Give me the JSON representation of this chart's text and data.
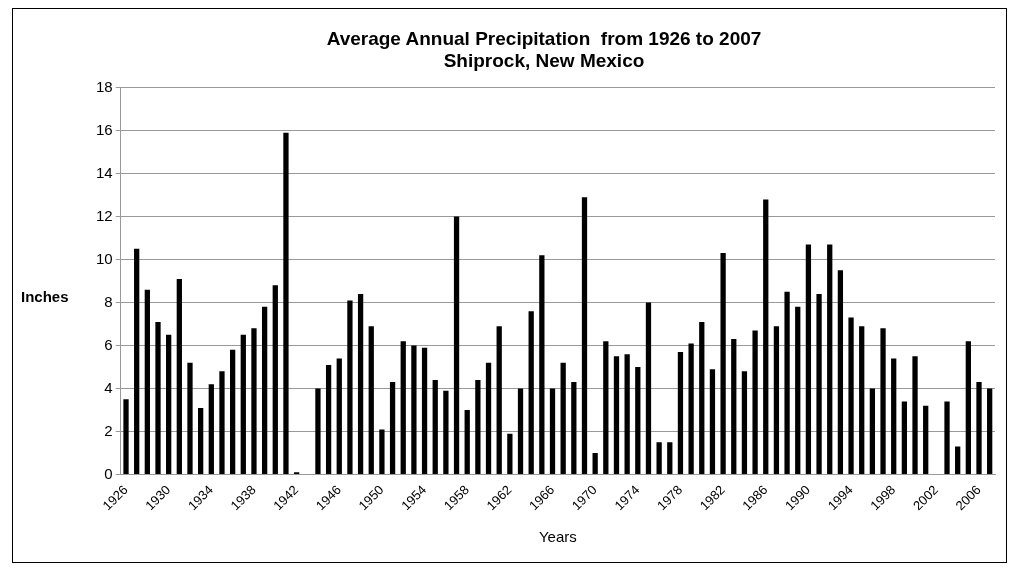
{
  "chart_data": {
    "type": "bar",
    "title": [
      "Average Annual Precipitation  from 1926 to 2007",
      "Shiprock, New Mexico"
    ],
    "xlabel": "Years",
    "ylabel": "Inches",
    "categories": [
      "1926",
      null,
      null,
      null,
      "1930",
      null,
      null,
      null,
      "1934",
      null,
      null,
      null,
      "1938",
      null,
      null,
      null,
      "1942",
      null,
      null,
      null,
      "1946",
      null,
      null,
      null,
      "1950",
      null,
      null,
      null,
      "1954",
      null,
      null,
      null,
      "1958",
      null,
      null,
      null,
      "1962",
      null,
      null,
      null,
      "1966",
      null,
      null,
      null,
      "1970",
      null,
      null,
      null,
      "1974",
      null,
      null,
      null,
      "1978",
      null,
      null,
      null,
      "1982",
      null,
      null,
      null,
      "1986",
      null,
      null,
      null,
      "1990",
      null,
      null,
      null,
      "1994",
      null,
      null,
      null,
      "1998",
      null,
      null,
      null,
      "2002",
      null,
      null,
      null,
      "2006",
      null
    ],
    "values": [
      3.5,
      10.5,
      8.6,
      7.1,
      6.5,
      9.1,
      5.2,
      3.1,
      4.2,
      4.8,
      5.8,
      6.5,
      6.8,
      7.8,
      8.8,
      15.9,
      0.1,
      null,
      4.0,
      5.1,
      5.4,
      8.1,
      8.4,
      6.9,
      2.1,
      4.3,
      6.2,
      6.0,
      5.9,
      4.4,
      3.9,
      12.0,
      3.0,
      4.4,
      5.2,
      6.9,
      1.9,
      4.0,
      7.6,
      10.2,
      4.0,
      5.2,
      4.3,
      12.9,
      1.0,
      6.2,
      5.5,
      5.6,
      5.0,
      8.0,
      1.5,
      1.5,
      5.7,
      6.1,
      7.1,
      4.9,
      10.3,
      6.3,
      4.8,
      6.7,
      12.8,
      6.9,
      8.5,
      7.8,
      10.7,
      8.4,
      10.7,
      9.5,
      7.3,
      6.9,
      4.0,
      6.8,
      5.4,
      3.4,
      5.5,
      3.2,
      null,
      3.4,
      1.3,
      6.2,
      4.3,
      4.0
    ],
    "color": "#000000",
    "ylim": [
      0,
      18
    ],
    "yticks": [
      0,
      2,
      4,
      6,
      8,
      10,
      12,
      14,
      16,
      18
    ],
    "grid": "y"
  }
}
